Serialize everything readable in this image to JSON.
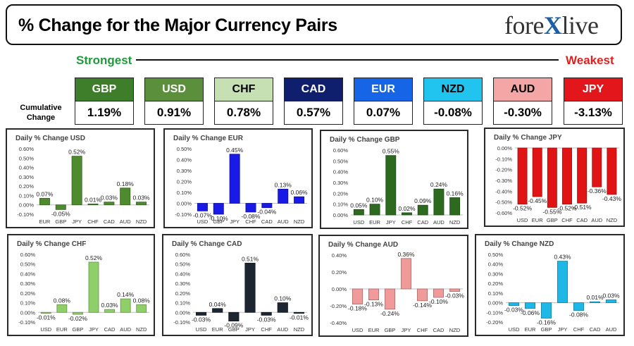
{
  "header": {
    "title": "% Change for the Major Currency Pairs",
    "logo_left": "fore",
    "logo_x": "X",
    "logo_right": "live"
  },
  "ranking": {
    "strongest_label": "Strongest",
    "weakest_label": "Weakest",
    "cumulative_label": "Cumulative Change",
    "items": [
      {
        "currency": "GBP",
        "value": "1.19%",
        "bg": "#3e7d2a",
        "fg": "#ffffff"
      },
      {
        "currency": "USD",
        "value": "0.91%",
        "bg": "#5b8f3c",
        "fg": "#ffffff"
      },
      {
        "currency": "CHF",
        "value": "0.78%",
        "bg": "#c6e0b4",
        "fg": "#000000"
      },
      {
        "currency": "CAD",
        "value": "0.57%",
        "bg": "#0f1f6e",
        "fg": "#ffffff"
      },
      {
        "currency": "EUR",
        "value": "0.07%",
        "bg": "#1565e6",
        "fg": "#ffffff"
      },
      {
        "currency": "NZD",
        "value": "-0.08%",
        "bg": "#21c3ef",
        "fg": "#000000"
      },
      {
        "currency": "AUD",
        "value": "-0.30%",
        "bg": "#f4a6a6",
        "fg": "#000000"
      },
      {
        "currency": "JPY",
        "value": "-3.13%",
        "bg": "#e3161b",
        "fg": "#ffffff"
      }
    ]
  },
  "chart_data": [
    {
      "type": "bar",
      "title": "Daily % Change USD",
      "color": "#4e8a2e",
      "categories": [
        "EUR",
        "GBP",
        "JPY",
        "CHF",
        "CAD",
        "AUD",
        "NZD"
      ],
      "values": [
        0.07,
        -0.05,
        0.52,
        0.01,
        0.03,
        0.18,
        0.03
      ],
      "labels": [
        "0.07%",
        "-0.05%",
        "0.52%",
        "0.01%",
        "0.03%",
        "0.18%",
        "0.03%"
      ],
      "ylim": [
        -0.1,
        0.6
      ],
      "ticks": [
        -0.1,
        0.0,
        0.1,
        0.2,
        0.3,
        0.4,
        0.5,
        0.6
      ],
      "tick_labels": [
        "-0.10%",
        "0.00%",
        "0.10%",
        "0.20%",
        "0.30%",
        "0.40%",
        "0.50%",
        "0.60%"
      ]
    },
    {
      "type": "bar",
      "title": "Daily % Change EUR",
      "color": "#1a1ae6",
      "categories": [
        "USD",
        "GBP",
        "JPY",
        "CHF",
        "CAD",
        "AUD",
        "NZD"
      ],
      "values": [
        -0.07,
        -0.1,
        0.45,
        -0.08,
        -0.04,
        0.13,
        0.06
      ],
      "labels": [
        "-0.07%",
        "-0.10%",
        "0.45%",
        "-0.08%",
        "-0.04%",
        "0.13%",
        "0.06%"
      ],
      "ylim": [
        -0.1,
        0.5
      ],
      "ticks": [
        -0.1,
        0.0,
        0.1,
        0.2,
        0.3,
        0.4,
        0.5
      ],
      "tick_labels": [
        "-0.10%",
        "0.00%",
        "0.10%",
        "0.20%",
        "0.30%",
        "0.40%",
        "0.50%"
      ]
    },
    {
      "type": "bar",
      "title": "Daily % Change GBP",
      "color": "#2d6a1f",
      "categories": [
        "USD",
        "EUR",
        "JPY",
        "CHF",
        "CAD",
        "AUD",
        "NZD"
      ],
      "values": [
        0.05,
        0.1,
        0.55,
        0.02,
        0.09,
        0.24,
        0.16
      ],
      "labels": [
        "0.05%",
        "0.10%",
        "0.55%",
        "0.02%",
        "0.09%",
        "0.24%",
        "0.16%"
      ],
      "ylim": [
        0.0,
        0.6
      ],
      "ticks": [
        0.0,
        0.1,
        0.2,
        0.3,
        0.4,
        0.5,
        0.6
      ],
      "tick_labels": [
        "0.00%",
        "0.10%",
        "0.20%",
        "0.30%",
        "0.40%",
        "0.50%",
        "0.60%"
      ]
    },
    {
      "type": "bar",
      "title": "Daily % Change JPY",
      "color": "#e01414",
      "categories": [
        "USD",
        "EUR",
        "GBP",
        "CHF",
        "CAD",
        "AUD",
        "NZD"
      ],
      "values": [
        -0.52,
        -0.45,
        -0.55,
        -0.52,
        -0.51,
        -0.36,
        -0.43
      ],
      "labels": [
        "-0.52%",
        "-0.45%",
        "-0.55%",
        "-0.52%",
        "-0.51%",
        "-0.36%",
        "-0.43%"
      ],
      "ylim": [
        -0.6,
        0.0
      ],
      "ticks": [
        -0.6,
        -0.5,
        -0.4,
        -0.3,
        -0.2,
        -0.1,
        0.0
      ],
      "tick_labels": [
        "-0.60%",
        "-0.50%",
        "-0.40%",
        "-0.30%",
        "-0.20%",
        "-0.10%",
        "0.00%"
      ]
    },
    {
      "type": "bar",
      "title": "Daily % Change CHF",
      "color": "#8fcf6a",
      "categories": [
        "USD",
        "EUR",
        "GBP",
        "JPY",
        "CAD",
        "AUD",
        "NZD"
      ],
      "values": [
        -0.01,
        0.08,
        -0.02,
        0.52,
        0.03,
        0.14,
        0.08
      ],
      "labels": [
        "-0.01%",
        "0.08%",
        "-0.02%",
        "0.52%",
        "0.03%",
        "0.14%",
        "0.08%"
      ],
      "ylim": [
        -0.1,
        0.6
      ],
      "ticks": [
        -0.1,
        0.0,
        0.1,
        0.2,
        0.3,
        0.4,
        0.5,
        0.6
      ],
      "tick_labels": [
        "-0.10%",
        "0.00%",
        "0.10%",
        "0.20%",
        "0.30%",
        "0.40%",
        "0.50%",
        "0.60%"
      ]
    },
    {
      "type": "bar",
      "title": "Daily % Change CAD",
      "color": "#1c2530",
      "categories": [
        "USD",
        "EUR",
        "GBP",
        "JPY",
        "CHF",
        "AUD",
        "NZD"
      ],
      "values": [
        -0.03,
        0.04,
        -0.09,
        0.51,
        -0.03,
        0.1,
        -0.01
      ],
      "labels": [
        "-0.03%",
        "0.04%",
        "-0.09%",
        "0.51%",
        "-0.03%",
        "0.10%",
        "-0.01%"
      ],
      "ylim": [
        -0.1,
        0.6
      ],
      "ticks": [
        -0.1,
        0.0,
        0.1,
        0.2,
        0.3,
        0.4,
        0.5,
        0.6
      ],
      "tick_labels": [
        "-0.10%",
        "0.00%",
        "0.10%",
        "0.20%",
        "0.30%",
        "0.40%",
        "0.50%",
        "0.60%"
      ]
    },
    {
      "type": "bar",
      "title": "Daily % Change AUD",
      "color": "#f09a9a",
      "categories": [
        "USD",
        "EUR",
        "GBP",
        "JPY",
        "CHF",
        "CAD",
        "NZD"
      ],
      "values": [
        -0.18,
        -0.13,
        -0.24,
        0.36,
        -0.14,
        -0.1,
        -0.03
      ],
      "labels": [
        "-0.18%",
        "-0.13%",
        "-0.24%",
        "0.36%",
        "-0.14%",
        "-0.10%",
        "-0.03%"
      ],
      "ylim": [
        -0.4,
        0.4
      ],
      "ticks": [
        -0.4,
        -0.2,
        0.0,
        0.2,
        0.4
      ],
      "tick_labels": [
        "-0.40%",
        "-0.20%",
        "0.00%",
        "0.20%",
        "0.40%"
      ]
    },
    {
      "type": "bar",
      "title": "Daily % Change NZD",
      "color": "#1fb8e6",
      "categories": [
        "USD",
        "EUR",
        "GBP",
        "JPY",
        "CHF",
        "CAD",
        "AUD"
      ],
      "values": [
        -0.03,
        -0.06,
        -0.16,
        0.43,
        -0.08,
        0.01,
        0.03
      ],
      "labels": [
        "-0.03%",
        "-0.06%",
        "-0.16%",
        "0.43%",
        "-0.08%",
        "0.01%",
        "0.03%"
      ],
      "ylim": [
        -0.2,
        0.5
      ],
      "ticks": [
        -0.2,
        -0.1,
        0.0,
        0.1,
        0.2,
        0.3,
        0.4,
        0.5
      ],
      "tick_labels": [
        "-0.20%",
        "-0.10%",
        "0.00%",
        "0.10%",
        "0.20%",
        "0.30%",
        "0.40%",
        "0.50%"
      ]
    }
  ]
}
